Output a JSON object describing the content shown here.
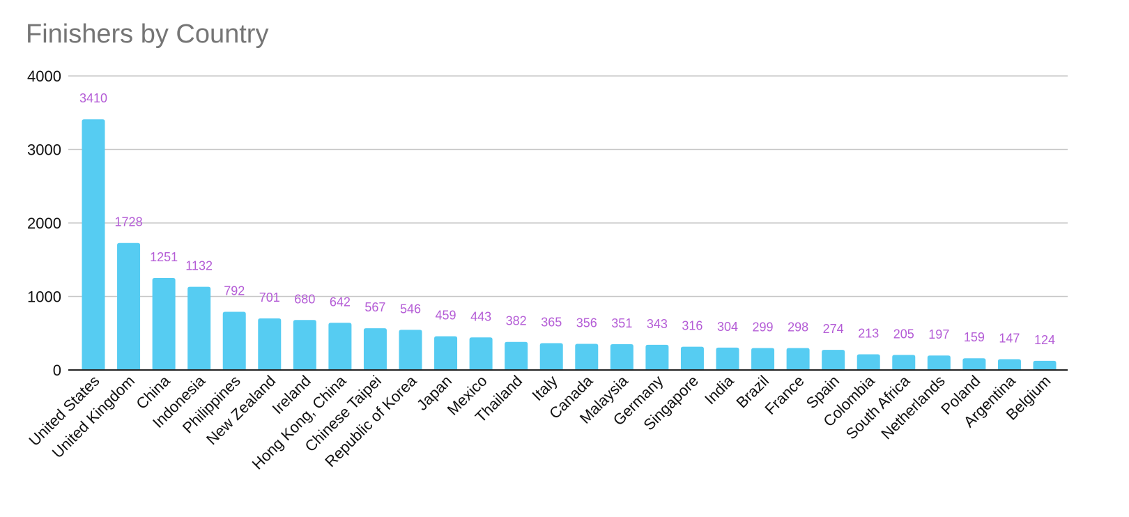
{
  "chart_data": {
    "type": "bar",
    "title": "Finishers by Country",
    "xlabel": "",
    "ylabel": "",
    "ylim": [
      0,
      4000
    ],
    "yticks": [
      0,
      1000,
      2000,
      3000,
      4000
    ],
    "grid": true,
    "legend": "none",
    "categories": [
      "United States",
      "United Kingdom",
      "China",
      "Indonesia",
      "Philippines",
      "New Zealand",
      "Ireland",
      "Hong Kong, China",
      "Chinese Taipei",
      "Republic of Korea",
      "Japan",
      "Mexico",
      "Thailand",
      "Italy",
      "Canada",
      "Malaysia",
      "Germany",
      "Singapore",
      "India",
      "Brazil",
      "France",
      "Spain",
      "Colombia",
      "South Africa",
      "Netherlands",
      "Poland",
      "Argentina",
      "Belgium"
    ],
    "values": [
      3410,
      1728,
      1251,
      1132,
      792,
      701,
      680,
      642,
      567,
      546,
      459,
      443,
      382,
      365,
      356,
      351,
      343,
      316,
      304,
      299,
      298,
      274,
      213,
      205,
      197,
      159,
      147,
      124
    ],
    "bar_color": "#56CCF2",
    "label_color": "#B45CD6"
  }
}
